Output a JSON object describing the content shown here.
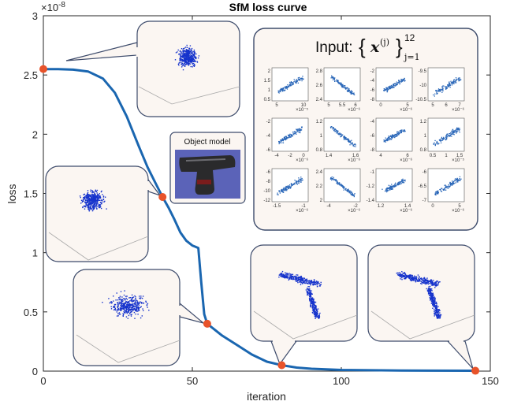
{
  "chart_data": {
    "type": "line",
    "title": "SfM loss curve",
    "xlabel": "iteration",
    "ylabel": "loss",
    "y_exponent": "×10",
    "y_exponent_power": "-8",
    "xlim": [
      0,
      150
    ],
    "ylim": [
      0,
      3
    ],
    "xticks": [
      0,
      50,
      100,
      150
    ],
    "yticks": [
      0,
      0.5,
      1,
      1.5,
      2,
      2.5,
      3
    ],
    "series": [
      {
        "color": "#1a66b0",
        "x": [
          0,
          5,
          10,
          15,
          20,
          24,
          28,
          32,
          35,
          38,
          40,
          42,
          44,
          46,
          48,
          50,
          51,
          52,
          53,
          54,
          55,
          57,
          60,
          65,
          70,
          75,
          80,
          85,
          90,
          95,
          100,
          110,
          120,
          130,
          145
        ],
        "y": [
          2.55,
          2.55,
          2.545,
          2.53,
          2.47,
          2.35,
          2.15,
          1.9,
          1.72,
          1.57,
          1.47,
          1.38,
          1.28,
          1.17,
          1.1,
          1.06,
          1.05,
          1.04,
          0.75,
          0.48,
          0.4,
          0.36,
          0.3,
          0.22,
          0.14,
          0.08,
          0.05,
          0.03,
          0.02,
          0.015,
          0.01,
          0.007,
          0.005,
          0.004,
          0.003
        ]
      }
    ],
    "highlighted_points": {
      "color": "#e8532a",
      "x": [
        0,
        40,
        55,
        80,
        145
      ],
      "y": [
        2.55,
        1.47,
        0.4,
        0.05,
        0.003
      ]
    }
  },
  "object_model_label": "Object model",
  "input_label": {
    "prefix": "Input:",
    "var": "x",
    "sup": "(j)",
    "lower": "j=1",
    "upper": "12"
  },
  "mini_plots": [
    {
      "yt": [
        "2",
        "1.5",
        "1",
        "0.5"
      ],
      "xt": [
        "5",
        "10"
      ],
      "exp": "×10⁻⁵"
    },
    {
      "yt": [
        "2.8",
        "2.6",
        "2.4"
      ],
      "xt": [
        "5",
        "5.5",
        "6"
      ],
      "exp": "×10⁻⁶"
    },
    {
      "yt": [
        "-2",
        "-4",
        "-6",
        "-8"
      ],
      "xt": [
        "0",
        "5"
      ],
      "exp": "×10⁻⁶"
    },
    {
      "yt": [
        "-9.5",
        "-10",
        "-10.5"
      ],
      "xt": [
        "5",
        "6",
        "7"
      ],
      "exp": "×10⁻⁶"
    },
    {
      "yt": [
        "-2",
        "-4",
        "-6"
      ],
      "xt": [
        "-4",
        "-2",
        "0"
      ],
      "exp": "×10⁻⁶"
    },
    {
      "yt": [
        "1.2",
        "1",
        "0.8"
      ],
      "xt": [
        "1.4",
        "1.6"
      ],
      "exp": "×10⁻⁶"
    },
    {
      "yt": [
        "-4",
        "-6",
        "-8"
      ],
      "xt": [
        "4",
        "6"
      ],
      "exp": "×10⁻⁶"
    },
    {
      "yt": [
        "1.2",
        "1",
        "0.8"
      ],
      "xt": [
        "0.5",
        "1",
        "1.5"
      ],
      "exp": "×10⁻⁵"
    },
    {
      "yt": [
        "-6",
        "-8",
        "-10",
        "-12"
      ],
      "xt": [
        "-1.5",
        "-1"
      ],
      "exp": "×10⁻⁶"
    },
    {
      "yt": [
        "2.4",
        "2.2",
        "2"
      ],
      "xt": [
        "-4",
        "-2"
      ],
      "exp": "×10⁻⁶"
    },
    {
      "yt": [
        "-1",
        "-1.2",
        "-1.4"
      ],
      "xt": [
        "1.2",
        "1.4"
      ],
      "exp": "×10⁻⁶"
    },
    {
      "yt": [
        "-6",
        "-6.5",
        "-7"
      ],
      "xt": [
        "0",
        "5"
      ],
      "exp": "×10⁻⁶"
    }
  ]
}
